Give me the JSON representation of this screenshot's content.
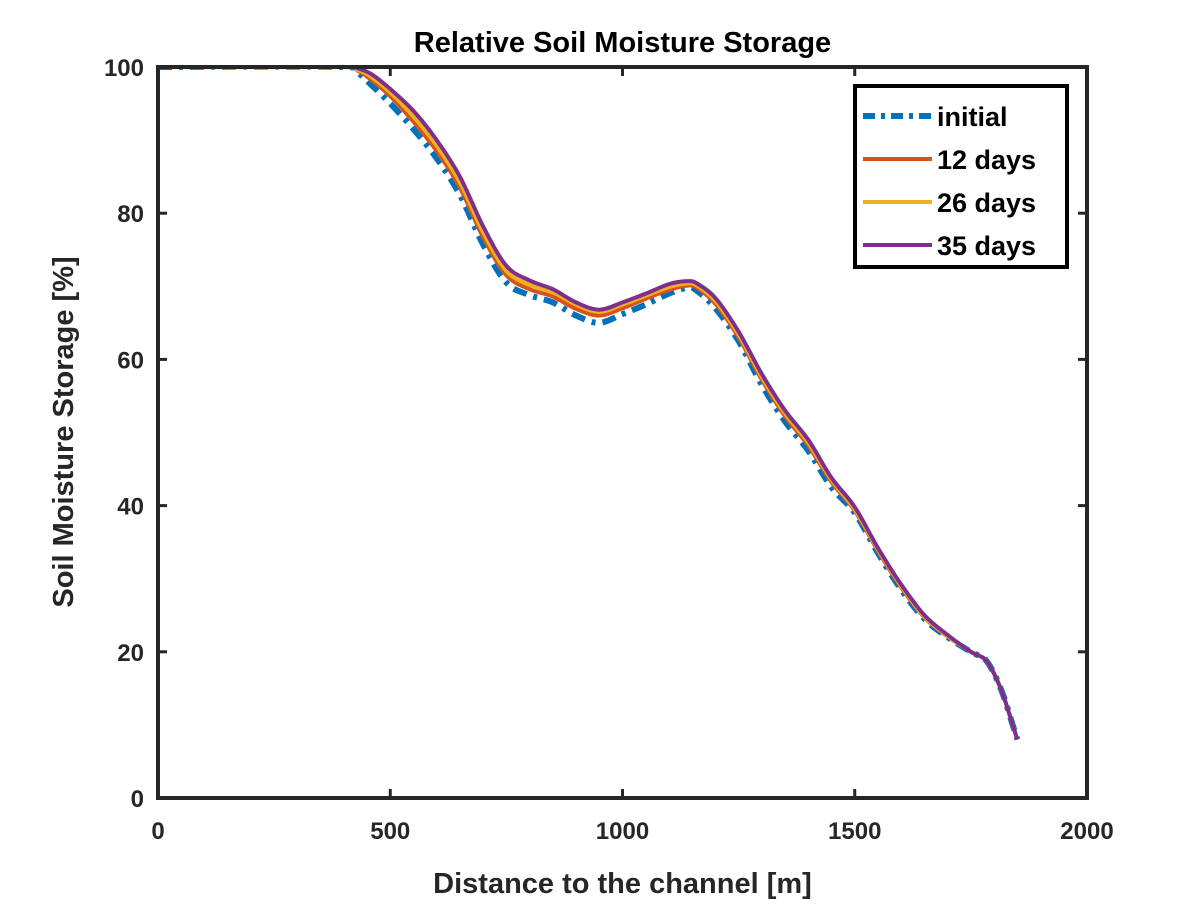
{
  "chart_data": {
    "type": "line",
    "title": "Relative Soil Moisture Storage",
    "xlabel": "Distance to the channel [m]",
    "ylabel": "Soil Moisture Storage [%]",
    "xlim": [
      0,
      2000
    ],
    "ylim": [
      0,
      100
    ],
    "xticks": [
      0,
      500,
      1000,
      1500,
      2000
    ],
    "yticks": [
      0,
      20,
      40,
      60,
      80,
      100
    ],
    "grid": false,
    "legend_position": "top-right",
    "series": [
      {
        "name": "initial",
        "color": "#0072BD",
        "line_style": "dashdot",
        "x": [
          0,
          400,
          430,
          460,
          500,
          550,
          600,
          650,
          700,
          750,
          800,
          850,
          900,
          950,
          1000,
          1050,
          1100,
          1140,
          1160,
          1200,
          1250,
          1300,
          1350,
          1400,
          1450,
          1500,
          1550,
          1600,
          1650,
          1700,
          1750,
          1780,
          1800,
          1820,
          1840,
          1850
        ],
        "y": [
          100,
          100,
          99.2,
          97.5,
          95,
          91.5,
          87.5,
          82.5,
          75.7,
          70.5,
          68.8,
          67.8,
          66,
          65,
          66.2,
          67.5,
          69,
          69.8,
          69.4,
          67,
          62.5,
          56.5,
          51.5,
          47.5,
          42.5,
          39,
          33.5,
          28.5,
          24.5,
          22,
          20,
          19,
          17,
          14,
          10,
          8
        ]
      },
      {
        "name": "12 days",
        "color": "#D95319",
        "line_style": "solid",
        "x": [
          0,
          400,
          430,
          460,
          500,
          550,
          600,
          650,
          700,
          750,
          800,
          850,
          900,
          950,
          1000,
          1050,
          1100,
          1140,
          1160,
          1200,
          1250,
          1300,
          1350,
          1400,
          1450,
          1500,
          1550,
          1600,
          1650,
          1700,
          1750,
          1780,
          1800,
          1820,
          1840,
          1850
        ],
        "y": [
          100,
          100,
          99.5,
          98.2,
          96,
          92.5,
          88.5,
          83.5,
          76.7,
          71.5,
          69.6,
          68.6,
          66.9,
          66,
          67,
          68.3,
          69.5,
          70.1,
          69.8,
          67.6,
          63,
          57.2,
          52.2,
          48.2,
          43.2,
          39.3,
          33.8,
          28.8,
          24.7,
          22.1,
          20,
          19,
          17,
          14,
          10,
          8
        ]
      },
      {
        "name": "26 days",
        "color": "#EDB120",
        "line_style": "solid",
        "x": [
          0,
          400,
          430,
          460,
          500,
          550,
          600,
          650,
          700,
          750,
          800,
          850,
          900,
          950,
          1000,
          1050,
          1100,
          1140,
          1160,
          1200,
          1250,
          1300,
          1350,
          1400,
          1450,
          1500,
          1550,
          1600,
          1650,
          1700,
          1750,
          1780,
          1800,
          1820,
          1840,
          1850
        ],
        "y": [
          100,
          100,
          99.6,
          98.6,
          96.5,
          93.2,
          89.2,
          84.2,
          77.4,
          72.1,
          70.2,
          69.2,
          67.5,
          66.5,
          67.5,
          68.7,
          69.9,
          70.4,
          70.1,
          68,
          63.4,
          57.6,
          52.6,
          48.6,
          43.5,
          39.5,
          34,
          29,
          24.8,
          22.2,
          20,
          19,
          17,
          14,
          10,
          8
        ]
      },
      {
        "name": "35 days",
        "color": "#7E2F8E",
        "line_style": "solid",
        "x": [
          0,
          400,
          430,
          460,
          500,
          550,
          600,
          650,
          700,
          750,
          800,
          850,
          900,
          950,
          1000,
          1050,
          1100,
          1140,
          1160,
          1200,
          1250,
          1300,
          1350,
          1400,
          1450,
          1500,
          1550,
          1600,
          1650,
          1700,
          1750,
          1780,
          1800,
          1820,
          1840,
          1850
        ],
        "y": [
          100,
          100,
          99.8,
          99,
          97,
          94,
          90,
          85,
          78.2,
          72.8,
          70.8,
          69.6,
          67.8,
          66.8,
          67.8,
          69,
          70.3,
          70.7,
          70.4,
          68.4,
          63.8,
          58,
          53,
          49,
          43.8,
          39.8,
          34.2,
          29.2,
          25,
          22.3,
          20,
          19,
          17,
          14,
          10,
          8
        ]
      }
    ]
  }
}
